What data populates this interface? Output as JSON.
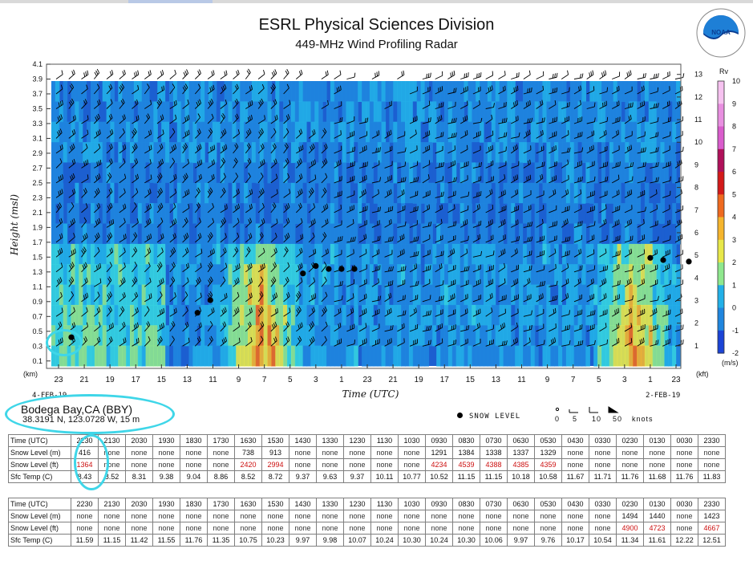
{
  "header": {
    "title": "ESRL Physical Sciences Division",
    "subtitle": "449-MHz Wind Profiling Radar"
  },
  "station": {
    "name": "Bodega Bay,CA (BBY)",
    "location": "38.3191 N, 123.0728 W, 15 m"
  },
  "legend": {
    "snow_level": "SNOW LEVEL",
    "barb_labels": [
      "0",
      "5",
      "10",
      "50",
      "knots"
    ]
  },
  "colors": {
    "accent_ring": "#3fd6e8",
    "background_field": "#1c5fd0",
    "table_red": "#cc1010"
  },
  "chart_data": {
    "type": "heatmap",
    "xlabel": "Time (UTC)",
    "ylabel": "Height (msl)",
    "y_unit_left": "(km)",
    "y_unit_right": "(kft)",
    "date_left": "4-FEB-19",
    "date_right": "2-FEB-19",
    "x_ticks": [
      "23",
      "21",
      "19",
      "17",
      "15",
      "13",
      "11",
      "9",
      "7",
      "5",
      "3",
      "1",
      "23",
      "21",
      "19",
      "17",
      "15",
      "13",
      "11",
      "9",
      "7",
      "5",
      "3",
      "1",
      "23"
    ],
    "y_ticks_km": [
      "0.1",
      "0.3",
      "0.5",
      "0.7",
      "0.9",
      "1.1",
      "1.3",
      "1.5",
      "1.7",
      "1.9",
      "2.1",
      "2.3",
      "2.5",
      "2.7",
      "2.9",
      "3.1",
      "3.3",
      "3.5",
      "3.7",
      "3.9",
      "4.1"
    ],
    "y_ticks_kft": [
      "1",
      "2",
      "3",
      "4",
      "5",
      "6",
      "7",
      "8",
      "9",
      "10",
      "11",
      "12",
      "13"
    ],
    "ylim_km": [
      0.0,
      4.1
    ],
    "colorbar": {
      "title": "Rv",
      "unit": "(m/s)",
      "ticks": [
        "10",
        "9",
        "8",
        "7",
        "6",
        "5",
        "4",
        "3",
        "2",
        "1",
        "0",
        "-1",
        "-2"
      ],
      "range": [
        -2,
        10
      ]
    },
    "snow_level_points": [
      {
        "x_hour_index": 1.0,
        "height_km": 0.42
      },
      {
        "x_hour_index": 10.8,
        "height_km": 0.75
      },
      {
        "x_hour_index": 11.8,
        "height_km": 0.92
      },
      {
        "x_hour_index": 19.0,
        "height_km": 1.28
      },
      {
        "x_hour_index": 20.0,
        "height_km": 1.38
      },
      {
        "x_hour_index": 21.0,
        "height_km": 1.34
      },
      {
        "x_hour_index": 22.0,
        "height_km": 1.34
      },
      {
        "x_hour_index": 23.0,
        "height_km": 1.34
      },
      {
        "x_hour_index": 46.0,
        "height_km": 1.49
      },
      {
        "x_hour_index": 47.0,
        "height_km": 1.46
      },
      {
        "x_hour_index": 49.0,
        "height_km": 1.44
      }
    ]
  },
  "table1": {
    "labels": [
      "Time (UTC)",
      "Snow Level (m)",
      "Snow Level (ft)",
      "Sfc Temp (C)"
    ],
    "times": [
      "2230",
      "2130",
      "2030",
      "1930",
      "1830",
      "1730",
      "1630",
      "1530",
      "1430",
      "1330",
      "1230",
      "1130",
      "1030",
      "0930",
      "0830",
      "0730",
      "0630",
      "0530",
      "0430",
      "0330",
      "0230",
      "0130",
      "0030",
      "2330"
    ],
    "snow_m": [
      "416",
      "none",
      "none",
      "none",
      "none",
      "none",
      "738",
      "913",
      "none",
      "none",
      "none",
      "none",
      "none",
      "1291",
      "1384",
      "1338",
      "1337",
      "1329",
      "none",
      "none",
      "none",
      "none",
      "none",
      "none"
    ],
    "snow_ft": [
      "1364",
      "none",
      "none",
      "none",
      "none",
      "none",
      "2420",
      "2994",
      "none",
      "none",
      "none",
      "none",
      "none",
      "4234",
      "4539",
      "4388",
      "4385",
      "4359",
      "none",
      "none",
      "none",
      "none",
      "none",
      "none"
    ],
    "sfc_temp": [
      "8.43",
      "8.52",
      "8.31",
      "9.38",
      "9.04",
      "8.86",
      "8.52",
      "8.72",
      "9.37",
      "9.63",
      "9.37",
      "10.11",
      "10.77",
      "10.52",
      "11.15",
      "11.15",
      "10.18",
      "10.58",
      "11.67",
      "11.71",
      "11.76",
      "11.68",
      "11.76",
      "11.83"
    ]
  },
  "table2": {
    "labels": [
      "Time (UTC)",
      "Snow Level (m)",
      "Snow Level (ft)",
      "Sfc Temp (C)"
    ],
    "times": [
      "2230",
      "2130",
      "2030",
      "1930",
      "1830",
      "1730",
      "1630",
      "1530",
      "1430",
      "1330",
      "1230",
      "1130",
      "1030",
      "0930",
      "0830",
      "0730",
      "0630",
      "0530",
      "0430",
      "0330",
      "0230",
      "0130",
      "0030",
      "2330"
    ],
    "snow_m": [
      "none",
      "none",
      "none",
      "none",
      "none",
      "none",
      "none",
      "none",
      "none",
      "none",
      "none",
      "none",
      "none",
      "none",
      "none",
      "none",
      "none",
      "none",
      "none",
      "none",
      "1494",
      "1440",
      "none",
      "1423"
    ],
    "snow_ft": [
      "none",
      "none",
      "none",
      "none",
      "none",
      "none",
      "none",
      "none",
      "none",
      "none",
      "none",
      "none",
      "none",
      "none",
      "none",
      "none",
      "none",
      "none",
      "none",
      "none",
      "4900",
      "4723",
      "none",
      "4667"
    ],
    "sfc_temp": [
      "11.59",
      "11.15",
      "11.42",
      "11.55",
      "11.76",
      "11.35",
      "10.75",
      "10.23",
      "9.97",
      "9.98",
      "10.07",
      "10.24",
      "10.30",
      "10.24",
      "10.30",
      "10.06",
      "9.97",
      "9.76",
      "10.17",
      "10.54",
      "11.34",
      "11.61",
      "12.22",
      "12.51"
    ]
  }
}
